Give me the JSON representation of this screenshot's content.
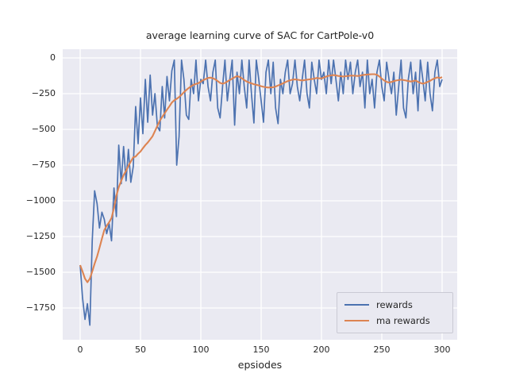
{
  "figure": {
    "title": "average learning curve of SAC for CartPole-v0",
    "xlabel": "epsiodes",
    "background": "#ffffff",
    "axes_background": "#eaeaf2",
    "grid_color": "#ffffff",
    "text_color": "#262626"
  },
  "chart_data": {
    "type": "line",
    "title": "average learning curve of SAC for CartPole-v0",
    "xlabel": "epsiodes",
    "ylabel": "",
    "grid": true,
    "legend_position": "lower right",
    "xlim": [
      -15,
      315
    ],
    "ylim": [
      -1970,
      90
    ],
    "xticks": [
      0,
      50,
      100,
      150,
      200,
      250,
      300
    ],
    "xtick_labels": [
      "0",
      "50",
      "100",
      "150",
      "200",
      "250",
      "300"
    ],
    "yticks": [
      0,
      -250,
      -500,
      -750,
      -1000,
      -1250,
      -1500,
      -1750
    ],
    "ytick_labels": [
      "0",
      "−250",
      "−500",
      "−750",
      "−1000",
      "−1250",
      "−1500",
      "−1750"
    ],
    "x": [
      0,
      2,
      4,
      6,
      8,
      10,
      12,
      14,
      16,
      18,
      20,
      22,
      24,
      26,
      28,
      30,
      32,
      34,
      36,
      38,
      40,
      42,
      44,
      46,
      48,
      50,
      52,
      54,
      56,
      58,
      60,
      62,
      64,
      66,
      68,
      70,
      72,
      74,
      76,
      78,
      80,
      82,
      84,
      86,
      88,
      90,
      92,
      94,
      96,
      98,
      100,
      102,
      104,
      106,
      108,
      110,
      112,
      114,
      116,
      118,
      120,
      122,
      124,
      126,
      128,
      130,
      132,
      134,
      136,
      138,
      140,
      142,
      144,
      146,
      148,
      150,
      152,
      154,
      156,
      158,
      160,
      162,
      164,
      166,
      168,
      170,
      172,
      174,
      176,
      178,
      180,
      182,
      184,
      186,
      188,
      190,
      192,
      194,
      196,
      198,
      200,
      202,
      204,
      206,
      208,
      210,
      212,
      214,
      216,
      218,
      220,
      222,
      224,
      226,
      228,
      230,
      232,
      234,
      236,
      238,
      240,
      242,
      244,
      246,
      248,
      250,
      252,
      254,
      256,
      258,
      260,
      262,
      264,
      266,
      268,
      270,
      272,
      274,
      276,
      278,
      280,
      282,
      284,
      286,
      288,
      290,
      292,
      294,
      296,
      298,
      300
    ],
    "series": [
      {
        "name": "rewards",
        "color": "#4c72b0",
        "values": [
          -1450,
          -1680,
          -1830,
          -1720,
          -1870,
          -1280,
          -930,
          -1020,
          -1190,
          -1080,
          -1130,
          -1230,
          -1160,
          -1280,
          -910,
          -1110,
          -610,
          -880,
          -620,
          -860,
          -640,
          -870,
          -760,
          -340,
          -600,
          -280,
          -530,
          -150,
          -450,
          -120,
          -400,
          -250,
          -480,
          -510,
          -200,
          -420,
          -130,
          -300,
          -90,
          -15,
          -750,
          -550,
          -15,
          -150,
          -400,
          -430,
          -150,
          -250,
          -15,
          -300,
          -150,
          -180,
          -15,
          -200,
          -300,
          -100,
          -15,
          -350,
          -420,
          -200,
          -15,
          -300,
          -150,
          -15,
          -470,
          -100,
          -250,
          -15,
          -200,
          -350,
          -15,
          -250,
          -455,
          -15,
          -150,
          -300,
          -450,
          -100,
          -15,
          -250,
          -30,
          -350,
          -460,
          -150,
          -250,
          -100,
          -15,
          -250,
          -180,
          -15,
          -200,
          -300,
          -150,
          -15,
          -250,
          -350,
          -30,
          -150,
          -250,
          -15,
          -150,
          -100,
          -250,
          -15,
          -180,
          -15,
          -150,
          -300,
          -100,
          -250,
          -15,
          -150,
          -30,
          -250,
          -100,
          -15,
          -200,
          -100,
          -350,
          -15,
          -250,
          -150,
          -350,
          -100,
          -15,
          -200,
          -300,
          -30,
          -150,
          -250,
          -100,
          -400,
          -200,
          -15,
          -350,
          -420,
          -150,
          -30,
          -250,
          -100,
          -370,
          -15,
          -150,
          -300,
          -30,
          -250,
          -370,
          -100,
          -15,
          -200,
          -150
        ]
      },
      {
        "name": "ma rewards",
        "color": "#dd8452",
        "values": [
          -1450,
          -1495,
          -1545,
          -1570,
          -1545,
          -1495,
          -1440,
          -1390,
          -1330,
          -1265,
          -1205,
          -1175,
          -1150,
          -1120,
          -1050,
          -965,
          -905,
          -860,
          -820,
          -790,
          -755,
          -725,
          -695,
          -690,
          -670,
          -655,
          -632,
          -610,
          -592,
          -570,
          -548,
          -512,
          -475,
          -440,
          -412,
          -388,
          -362,
          -338,
          -312,
          -296,
          -286,
          -274,
          -258,
          -240,
          -224,
          -210,
          -198,
          -188,
          -182,
          -176,
          -165,
          -155,
          -148,
          -140,
          -138,
          -142,
          -150,
          -162,
          -175,
          -180,
          -175,
          -165,
          -155,
          -145,
          -135,
          -128,
          -132,
          -142,
          -155,
          -165,
          -172,
          -178,
          -184,
          -188,
          -192,
          -198,
          -202,
          -205,
          -207,
          -206,
          -205,
          -200,
          -193,
          -186,
          -178,
          -170,
          -162,
          -156,
          -152,
          -150,
          -152,
          -155,
          -157,
          -155,
          -152,
          -150,
          -148,
          -145,
          -140,
          -143,
          -143,
          -138,
          -130,
          -125,
          -122,
          -120,
          -122,
          -126,
          -128,
          -130,
          -128,
          -126,
          -124,
          -124,
          -125,
          -126,
          -124,
          -120,
          -118,
          -116,
          -115,
          -114,
          -114,
          -118,
          -130,
          -145,
          -158,
          -168,
          -172,
          -168,
          -162,
          -158,
          -155,
          -152,
          -155,
          -158,
          -162,
          -165,
          -162,
          -158,
          -168,
          -175,
          -180,
          -175,
          -168,
          -160,
          -150,
          -142,
          -136,
          -140,
          -135
        ]
      }
    ]
  },
  "legend": {
    "entries": [
      {
        "label": "rewards"
      },
      {
        "label": "ma rewards"
      }
    ]
  }
}
